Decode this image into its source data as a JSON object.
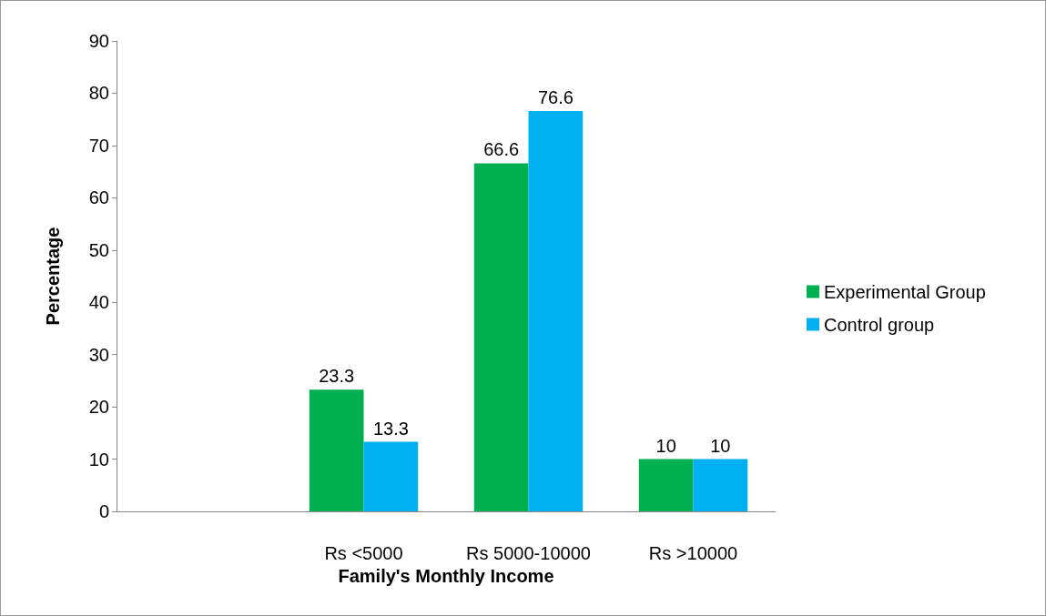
{
  "chart_data": {
    "type": "bar",
    "xlabel": "Family's Monthly Income",
    "ylabel": "Percentage",
    "categories": [
      null,
      "Rs <5000",
      "Rs 5000-10000",
      "Rs >10000"
    ],
    "series": [
      {
        "name": "Experimental Group",
        "color": "#00b050",
        "values": [
          null,
          23.3,
          66.6,
          10
        ]
      },
      {
        "name": "Control group",
        "color": "#00b0f0",
        "values": [
          null,
          13.3,
          76.6,
          10
        ]
      }
    ],
    "ylim": [
      0,
      90
    ],
    "yticks": [
      0,
      10,
      20,
      30,
      40,
      50,
      60,
      70,
      80,
      90
    ],
    "grid": false,
    "legend": "right",
    "data_labels": true
  }
}
